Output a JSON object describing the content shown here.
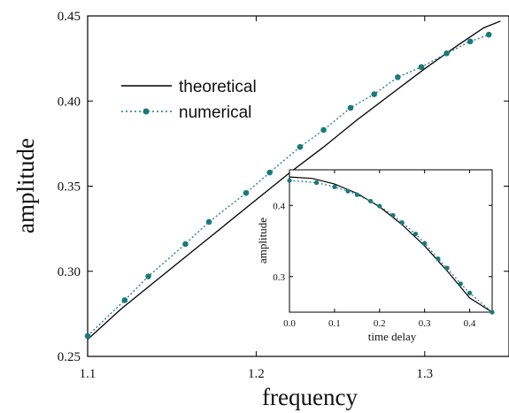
{
  "colors": {
    "theoretical": "#000000",
    "numerical": "#1a7a7a"
  },
  "chart_data": [
    {
      "type": "line",
      "title": "",
      "xlabel": "frequency",
      "ylabel": "amplitude",
      "xlim": [
        1.1,
        1.35
      ],
      "ylim": [
        0.25,
        0.45
      ],
      "xticks": [
        "1.1",
        "1.2",
        "1.3"
      ],
      "yticks": [
        "0.25",
        "0.30",
        "0.35",
        "0.40",
        "0.45"
      ],
      "legend_position": "upper-left",
      "series": [
        {
          "name": "theoretical",
          "style": "solid",
          "x": [
            1.1,
            1.12,
            1.14,
            1.16,
            1.18,
            1.2,
            1.22,
            1.24,
            1.26,
            1.28,
            1.3,
            1.32,
            1.335,
            1.345
          ],
          "y": [
            0.26,
            0.278,
            0.294,
            0.31,
            0.326,
            0.342,
            0.358,
            0.373,
            0.389,
            0.404,
            0.419,
            0.433,
            0.443,
            0.447
          ]
        },
        {
          "name": "numerical",
          "style": "dotted-markers",
          "x": [
            1.1,
            1.122,
            1.136,
            1.158,
            1.172,
            1.194,
            1.208,
            1.226,
            1.24,
            1.256,
            1.27,
            1.284,
            1.298,
            1.313,
            1.327,
            1.338
          ],
          "y": [
            0.262,
            0.283,
            0.297,
            0.316,
            0.329,
            0.346,
            0.358,
            0.373,
            0.383,
            0.396,
            0.404,
            0.414,
            0.42,
            0.428,
            0.435,
            0.439
          ]
        }
      ]
    },
    {
      "type": "line",
      "title": "",
      "xlabel": "time delay",
      "ylabel": "amplitude",
      "xlim": [
        0.0,
        0.45
      ],
      "ylim": [
        0.25,
        0.45
      ],
      "xticks": [
        "0.0",
        "0.1",
        "0.2",
        "0.3",
        "0.4"
      ],
      "yticks": [
        "0.3",
        "0.4"
      ],
      "series": [
        {
          "style": "solid",
          "x": [
            0.0,
            0.05,
            0.1,
            0.15,
            0.2,
            0.25,
            0.3,
            0.35,
            0.4,
            0.45
          ],
          "y": [
            0.44,
            0.438,
            0.43,
            0.417,
            0.398,
            0.373,
            0.343,
            0.308,
            0.27,
            0.25
          ]
        },
        {
          "style": "dotted-markers",
          "x": [
            0.0,
            0.06,
            0.1,
            0.13,
            0.15,
            0.18,
            0.2,
            0.23,
            0.25,
            0.28,
            0.3,
            0.33,
            0.35,
            0.38,
            0.4,
            0.45
          ],
          "y": [
            0.435,
            0.432,
            0.426,
            0.42,
            0.415,
            0.406,
            0.399,
            0.386,
            0.376,
            0.36,
            0.347,
            0.325,
            0.312,
            0.29,
            0.277,
            0.25
          ]
        }
      ]
    }
  ]
}
